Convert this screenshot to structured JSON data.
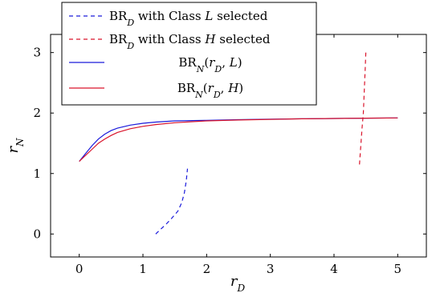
{
  "chart_data": {
    "type": "line",
    "xlabel": "r_D",
    "ylabel": "r_N",
    "xlim": [
      -0.45,
      5.45
    ],
    "ylim": [
      -0.38,
      3.3
    ],
    "xticks": [
      0,
      1,
      2,
      3,
      4,
      5
    ],
    "yticks": [
      0,
      1,
      2,
      3
    ],
    "grid": false,
    "legend_placement": "top-left",
    "series": [
      {
        "name": "BR_D with Class L selected",
        "legend_label": "BR D with Class L selected",
        "style": "dashed",
        "color": "#1a1adb",
        "x": [
          1.2,
          1.28,
          1.37,
          1.46,
          1.55,
          1.61,
          1.65,
          1.68,
          1.7
        ],
        "y": [
          0.0,
          0.08,
          0.17,
          0.27,
          0.38,
          0.52,
          0.68,
          0.88,
          1.08
        ]
      },
      {
        "name": "BR_D with Class H selected",
        "legend_label": "BR D with Class H selected",
        "style": "dashed",
        "color": "#d9142b",
        "x": [
          4.4,
          4.42,
          4.44,
          4.46,
          4.47,
          4.48,
          4.49,
          4.5
        ],
        "y": [
          1.15,
          1.45,
          1.75,
          2.0,
          2.25,
          2.5,
          2.75,
          3.0
        ]
      },
      {
        "name": "BR_N(r_D, L)",
        "legend_label": "BR N(r D, L)",
        "style": "solid",
        "color": "#1a1adb",
        "x": [
          0.0,
          0.1,
          0.2,
          0.3,
          0.4,
          0.5,
          0.6,
          0.8,
          1.0,
          1.2,
          1.5,
          2.0,
          2.5,
          3.0,
          3.5,
          4.0,
          4.5,
          5.0
        ],
        "y": [
          1.2,
          1.33,
          1.46,
          1.57,
          1.65,
          1.71,
          1.75,
          1.8,
          1.83,
          1.85,
          1.87,
          1.88,
          1.89,
          1.9,
          1.905,
          1.91,
          1.915,
          1.92
        ]
      },
      {
        "name": "BR_N(r_D, H)",
        "legend_label": "BR N(r D, H)",
        "style": "solid",
        "color": "#d9142b",
        "x": [
          0.0,
          0.1,
          0.2,
          0.3,
          0.4,
          0.5,
          0.6,
          0.8,
          1.0,
          1.2,
          1.5,
          2.0,
          2.5,
          3.0,
          3.5,
          4.0,
          4.5,
          5.0
        ],
        "y": [
          1.2,
          1.3,
          1.4,
          1.5,
          1.57,
          1.63,
          1.68,
          1.74,
          1.78,
          1.81,
          1.84,
          1.87,
          1.885,
          1.895,
          1.905,
          1.91,
          1.915,
          1.92
        ]
      }
    ]
  }
}
